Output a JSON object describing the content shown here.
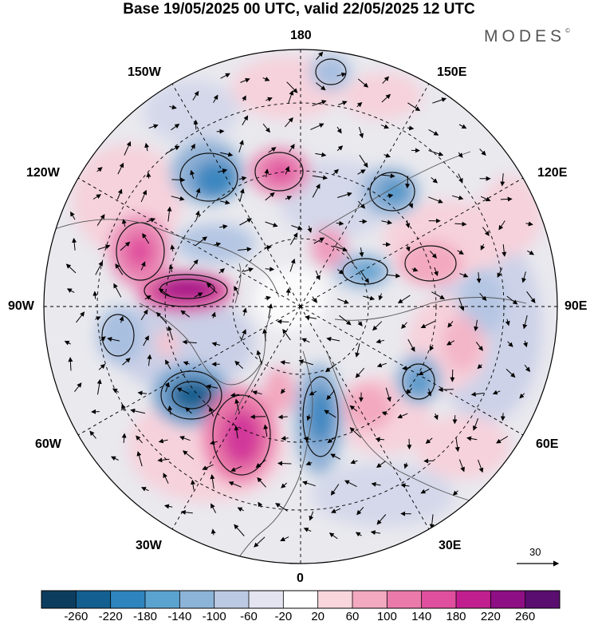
{
  "title": "Base 19/05/2025 00 UTC, valid 22/05/2025 12 UTC",
  "brand": "MODES",
  "brand_mark": "©",
  "longitudes": {
    "top": "180",
    "bottom": "0",
    "left": "90W",
    "right": "90E",
    "upper_left_1": "150W",
    "upper_left_2": "120W",
    "upper_right_1": "150E",
    "upper_right_2": "120E",
    "lower_left_1": "60W",
    "lower_left_2": "30W",
    "lower_right_1": "60E",
    "lower_right_2": "30E"
  },
  "vector_scale": "30",
  "colorbar": {
    "ticks": [
      "-260",
      "-220",
      "-180",
      "-140",
      "-100",
      "-60",
      "-20",
      "20",
      "60",
      "100",
      "140",
      "180",
      "220",
      "260"
    ],
    "colors": [
      "#0d3d5e",
      "#135f8f",
      "#2e84bd",
      "#5ba3cf",
      "#8cb4d8",
      "#bcc9e2",
      "#e4e4f0",
      "#ffffff",
      "#f8d6dc",
      "#f3a9c0",
      "#ea7aa9",
      "#e04f9e",
      "#c11f8f",
      "#8e0f83",
      "#5a0e6f"
    ]
  },
  "colors": {
    "ocean_bg": "#e8e8e8",
    "coast": "#555555",
    "frame": "#000000"
  }
}
